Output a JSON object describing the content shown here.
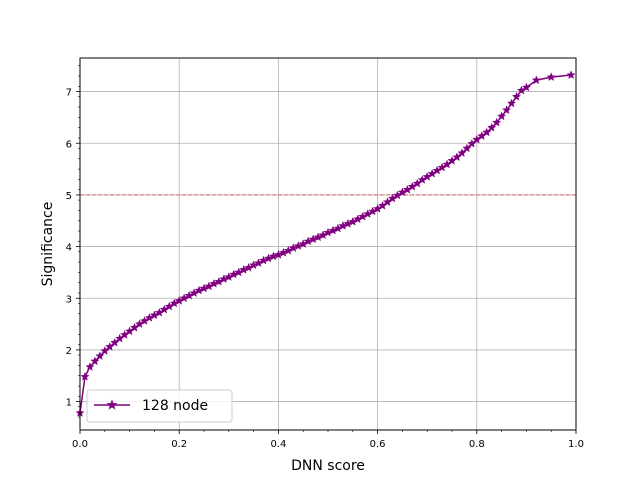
{
  "chart_data": {
    "type": "line",
    "xlabel": "DNN score",
    "ylabel": "Significance",
    "xlim": [
      0.0,
      1.0
    ],
    "ylim": [
      0.45,
      7.65
    ],
    "xticks": [
      0.0,
      0.2,
      0.4,
      0.6,
      0.8,
      1.0
    ],
    "xtick_labels": [
      "0.0",
      "0.2",
      "0.4",
      "0.6",
      "0.8",
      "1.0"
    ],
    "yticks": [
      1,
      2,
      3,
      4,
      5,
      6,
      7
    ],
    "ytick_labels": [
      "1",
      "2",
      "3",
      "4",
      "5",
      "6",
      "7"
    ],
    "grid": true,
    "legend_position": "lower-left",
    "reference_line": {
      "y": 5,
      "style": "dashed",
      "color": "#e06060"
    },
    "series": [
      {
        "name": "128 node",
        "color": "#800080",
        "marker": "star",
        "x": [
          0.0,
          0.01,
          0.02,
          0.03,
          0.04,
          0.05,
          0.06,
          0.07,
          0.08,
          0.09,
          0.1,
          0.11,
          0.12,
          0.13,
          0.14,
          0.15,
          0.16,
          0.17,
          0.18,
          0.19,
          0.2,
          0.21,
          0.22,
          0.23,
          0.24,
          0.25,
          0.26,
          0.27,
          0.28,
          0.29,
          0.3,
          0.31,
          0.32,
          0.33,
          0.34,
          0.35,
          0.36,
          0.37,
          0.38,
          0.39,
          0.4,
          0.41,
          0.42,
          0.43,
          0.44,
          0.45,
          0.46,
          0.47,
          0.48,
          0.49,
          0.5,
          0.51,
          0.52,
          0.53,
          0.54,
          0.55,
          0.56,
          0.57,
          0.58,
          0.59,
          0.6,
          0.61,
          0.62,
          0.63,
          0.64,
          0.65,
          0.66,
          0.67,
          0.68,
          0.69,
          0.7,
          0.71,
          0.72,
          0.73,
          0.74,
          0.75,
          0.76,
          0.77,
          0.78,
          0.79,
          0.8,
          0.81,
          0.82,
          0.83,
          0.84,
          0.85,
          0.86,
          0.87,
          0.88,
          0.89,
          0.9,
          0.92,
          0.95,
          0.99
        ],
        "y": [
          0.78,
          1.48,
          1.67,
          1.78,
          1.88,
          1.98,
          2.06,
          2.14,
          2.22,
          2.29,
          2.36,
          2.43,
          2.5,
          2.56,
          2.62,
          2.67,
          2.72,
          2.78,
          2.84,
          2.9,
          2.95,
          3.0,
          3.05,
          3.1,
          3.15,
          3.19,
          3.23,
          3.28,
          3.32,
          3.37,
          3.41,
          3.46,
          3.5,
          3.55,
          3.59,
          3.64,
          3.68,
          3.73,
          3.77,
          3.81,
          3.84,
          3.88,
          3.92,
          3.97,
          4.01,
          4.05,
          4.1,
          4.14,
          4.18,
          4.22,
          4.27,
          4.31,
          4.35,
          4.4,
          4.44,
          4.48,
          4.53,
          4.58,
          4.63,
          4.68,
          4.73,
          4.79,
          4.86,
          4.93,
          4.99,
          5.05,
          5.1,
          5.16,
          5.22,
          5.29,
          5.35,
          5.41,
          5.47,
          5.53,
          5.59,
          5.66,
          5.73,
          5.81,
          5.9,
          5.99,
          6.07,
          6.14,
          6.21,
          6.3,
          6.4,
          6.52,
          6.64,
          6.77,
          6.9,
          7.02,
          7.08,
          7.22,
          7.28,
          7.32
        ]
      }
    ]
  }
}
